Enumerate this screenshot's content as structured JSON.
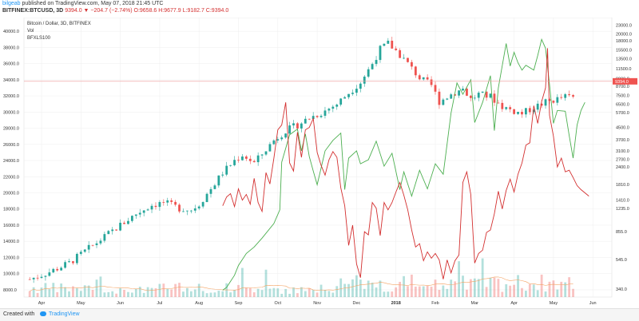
{
  "header": {
    "author": "bilgeab",
    "published_text": "published on TradingView.com, May 07, 2018 21:45 UTC",
    "symbol_line": "BITFINEX:BTCUSD, 3D",
    "values_line": "9394.0 ▼ −204.7 (−2.74%) O:9658.6 H:9677.9 L:9182.7 C:9394.0"
  },
  "footer": {
    "created_with": "Created with",
    "brand": "TradingView"
  },
  "colors": {
    "up": "#26a69a",
    "down": "#ef5350",
    "green_line": "#4caf50",
    "red_line": "#d32f2f",
    "vol_ma": "#f4a261",
    "price_line": "#ef9a9a",
    "price_tag": "#ef5350"
  },
  "chart_data": {
    "type": "line",
    "legend": [
      "Bitcoin / Dollar, 3D, BITFINEX",
      "Vol",
      "BFXLS100"
    ],
    "left_axis": {
      "ticks": [
        8000,
        10000,
        12000,
        14000,
        16000,
        18000,
        20000,
        22000,
        24000,
        26000,
        28000,
        30000,
        32000,
        34000,
        36000,
        38000,
        40000
      ],
      "labels": [
        "8000.0",
        "10000.0",
        "12000.0",
        "14000.0",
        "16000.0",
        "18000.0",
        "20000.0",
        "22000.0",
        "24000.0",
        "26000.0",
        "28000.0",
        "30000.0",
        "32000.0",
        "34000.0",
        "36000.0",
        "38000.0",
        "40000.0"
      ],
      "range": [
        7100,
        41700
      ]
    },
    "right_axis": {
      "scale": "log",
      "ticks": [
        340,
        545,
        855,
        1235,
        1410,
        1810,
        2400,
        2700,
        3100,
        3700,
        4500,
        5700,
        6500,
        7500,
        8700,
        9800,
        11500,
        13500,
        15500,
        18000,
        20000,
        23000
      ],
      "labels": [
        "340.0",
        "545.0",
        "855.0",
        "1235.0",
        "1410.0",
        "1810.0",
        "2400.0",
        "2700.0",
        "3100.0",
        "3700.0",
        "4500.0",
        "5700.0",
        "6500.0",
        "7500.0",
        "8700.0",
        "9800.0",
        "11500.0",
        "13500.0",
        "15500.0",
        "18000.0",
        "20000.0",
        "23000.0"
      ],
      "range": [
        300,
        26000
      ]
    },
    "x_axis": {
      "labels": [
        "Apr",
        "May",
        "Jun",
        "Jul",
        "Aug",
        "Sep",
        "Oct",
        "Nov",
        "Dec",
        "2018",
        "Feb",
        "Mar",
        "Apr",
        "May",
        "Jun"
      ],
      "positions": [
        0,
        1,
        2,
        3,
        4,
        5,
        6,
        7,
        8,
        9,
        10,
        11,
        12,
        13,
        14
      ],
      "bold": [
        "2018"
      ]
    },
    "last_price": {
      "value": 9394.0,
      "label": "9394.0"
    },
    "price_anchors": [
      [
        -0.3,
        9300
      ],
      [
        0.2,
        10200
      ],
      [
        0.7,
        11300
      ],
      [
        1.0,
        12400
      ],
      [
        1.5,
        14200
      ],
      [
        2.0,
        16000
      ],
      [
        2.4,
        17400
      ],
      [
        2.8,
        18500
      ],
      [
        3.1,
        18800
      ],
      [
        3.5,
        18100
      ],
      [
        3.8,
        17900
      ],
      [
        4.0,
        18600
      ],
      [
        4.3,
        20500
      ],
      [
        4.6,
        22500
      ],
      [
        4.9,
        24000
      ],
      [
        5.1,
        24700
      ],
      [
        5.4,
        23700
      ],
      [
        5.6,
        24800
      ],
      [
        5.9,
        26500
      ],
      [
        6.2,
        27700
      ],
      [
        6.5,
        28400
      ],
      [
        6.8,
        29300
      ],
      [
        7.1,
        29900
      ],
      [
        7.5,
        31000
      ],
      [
        7.8,
        32400
      ],
      [
        8.1,
        33700
      ],
      [
        8.4,
        36000
      ],
      [
        8.6,
        37800
      ],
      [
        8.8,
        38500
      ],
      [
        9.0,
        37600
      ],
      [
        9.3,
        36000
      ],
      [
        9.6,
        34200
      ],
      [
        9.9,
        33300
      ],
      [
        10.1,
        31300
      ],
      [
        10.4,
        32200
      ],
      [
        10.7,
        32900
      ],
      [
        10.9,
        31600
      ],
      [
        11.1,
        32200
      ],
      [
        11.4,
        31900
      ],
      [
        11.7,
        30700
      ],
      [
        12.0,
        30100
      ],
      [
        12.2,
        29800
      ],
      [
        12.5,
        30600
      ],
      [
        12.8,
        31200
      ],
      [
        13.1,
        31600
      ],
      [
        13.3,
        31900
      ],
      [
        13.5,
        31800
      ]
    ],
    "green_line": [
      [
        4.6,
        7950
      ],
      [
        4.7,
        8300
      ],
      [
        4.9,
        9800
      ],
      [
        5.0,
        11000
      ],
      [
        5.2,
        12500
      ],
      [
        5.4,
        13300
      ],
      [
        5.6,
        14400
      ],
      [
        5.9,
        16200
      ],
      [
        6.05,
        17900
      ],
      [
        6.1,
        23800
      ],
      [
        6.3,
        27200
      ],
      [
        6.5,
        27900
      ],
      [
        6.6,
        25200
      ],
      [
        6.7,
        27300
      ],
      [
        6.8,
        24500
      ],
      [
        6.9,
        22700
      ],
      [
        7.0,
        21000
      ],
      [
        7.2,
        25200
      ],
      [
        7.4,
        26500
      ],
      [
        7.6,
        27400
      ],
      [
        7.7,
        20400
      ],
      [
        7.8,
        24300
      ],
      [
        8.0,
        25200
      ],
      [
        8.1,
        23600
      ],
      [
        8.3,
        24100
      ],
      [
        8.5,
        26400
      ],
      [
        8.7,
        23300
      ],
      [
        8.9,
        24900
      ],
      [
        9.1,
        20400
      ],
      [
        9.2,
        22600
      ],
      [
        9.4,
        19600
      ],
      [
        9.6,
        22800
      ],
      [
        9.8,
        20500
      ],
      [
        10.0,
        23600
      ],
      [
        10.2,
        22300
      ],
      [
        10.4,
        29900
      ],
      [
        10.55,
        33600
      ],
      [
        10.7,
        32200
      ],
      [
        10.9,
        34000
      ],
      [
        11.0,
        28700
      ],
      [
        11.2,
        31200
      ],
      [
        11.4,
        34500
      ],
      [
        11.5,
        27700
      ],
      [
        11.6,
        33000
      ],
      [
        11.8,
        38500
      ],
      [
        11.9,
        35700
      ],
      [
        12.0,
        37400
      ],
      [
        12.1,
        36100
      ],
      [
        12.2,
        35200
      ],
      [
        12.3,
        35800
      ],
      [
        12.5,
        35200
      ],
      [
        12.6,
        37000
      ],
      [
        12.7,
        39000
      ],
      [
        12.8,
        37900
      ],
      [
        12.9,
        33400
      ],
      [
        13.0,
        28600
      ],
      [
        13.1,
        30200
      ],
      [
        13.3,
        30100
      ],
      [
        13.4,
        27100
      ],
      [
        13.5,
        24300
      ],
      [
        13.6,
        28400
      ],
      [
        13.7,
        30200
      ],
      [
        13.8,
        31200
      ]
    ],
    "red_line": [
      [
        4.6,
        18400
      ],
      [
        4.7,
        19500
      ],
      [
        4.8,
        19900
      ],
      [
        4.9,
        18300
      ],
      [
        5.0,
        20500
      ],
      [
        5.1,
        19100
      ],
      [
        5.2,
        19800
      ],
      [
        5.3,
        18600
      ],
      [
        5.4,
        21800
      ],
      [
        5.5,
        18800
      ],
      [
        5.6,
        17700
      ],
      [
        5.7,
        22500
      ],
      [
        5.8,
        21100
      ],
      [
        5.9,
        24300
      ],
      [
        6.0,
        27800
      ],
      [
        6.1,
        28400
      ],
      [
        6.2,
        31200
      ],
      [
        6.3,
        23700
      ],
      [
        6.4,
        22700
      ],
      [
        6.5,
        27500
      ],
      [
        6.6,
        24400
      ],
      [
        6.7,
        27800
      ],
      [
        6.8,
        28100
      ],
      [
        6.9,
        29200
      ],
      [
        7.0,
        25000
      ],
      [
        7.1,
        23400
      ],
      [
        7.2,
        22200
      ],
      [
        7.3,
        24100
      ],
      [
        7.4,
        25100
      ],
      [
        7.5,
        24400
      ],
      [
        7.6,
        20600
      ],
      [
        7.7,
        18400
      ],
      [
        7.8,
        13500
      ],
      [
        7.9,
        16000
      ],
      [
        8.0,
        11200
      ],
      [
        8.1,
        9500
      ],
      [
        8.2,
        15200
      ],
      [
        8.3,
        14800
      ],
      [
        8.4,
        18800
      ],
      [
        8.5,
        18100
      ],
      [
        8.6,
        14700
      ],
      [
        8.7,
        18800
      ],
      [
        8.8,
        17900
      ],
      [
        8.9,
        18800
      ],
      [
        9.0,
        20100
      ],
      [
        9.1,
        21300
      ],
      [
        9.2,
        19700
      ],
      [
        9.3,
        17900
      ],
      [
        9.4,
        15400
      ],
      [
        9.5,
        13300
      ],
      [
        9.6,
        13700
      ],
      [
        9.7,
        11600
      ],
      [
        9.8,
        12700
      ],
      [
        9.9,
        11900
      ],
      [
        10.0,
        12500
      ],
      [
        10.1,
        11700
      ],
      [
        10.2,
        9300
      ],
      [
        10.3,
        11700
      ],
      [
        10.4,
        10100
      ],
      [
        10.5,
        11600
      ],
      [
        10.6,
        12300
      ],
      [
        10.7,
        21300
      ],
      [
        10.8,
        22600
      ],
      [
        10.9,
        19800
      ],
      [
        11.0,
        11300
      ],
      [
        11.1,
        12500
      ],
      [
        11.2,
        12900
      ],
      [
        11.3,
        15100
      ],
      [
        11.4,
        15400
      ],
      [
        11.5,
        17400
      ],
      [
        11.6,
        20200
      ],
      [
        11.7,
        18000
      ],
      [
        11.8,
        20300
      ],
      [
        11.9,
        21700
      ],
      [
        12.0,
        20100
      ],
      [
        12.1,
        22300
      ],
      [
        12.2,
        23700
      ],
      [
        12.3,
        25900
      ],
      [
        12.4,
        26200
      ],
      [
        12.5,
        30800
      ],
      [
        12.6,
        28600
      ],
      [
        12.7,
        31300
      ],
      [
        12.8,
        33000
      ],
      [
        12.85,
        37900
      ],
      [
        12.9,
        29600
      ],
      [
        13.0,
        27000
      ],
      [
        13.1,
        23200
      ],
      [
        13.2,
        24300
      ],
      [
        13.3,
        22600
      ],
      [
        13.4,
        22800
      ],
      [
        13.5,
        21900
      ],
      [
        13.6,
        20900
      ],
      [
        13.7,
        20400
      ],
      [
        13.8,
        20000
      ],
      [
        13.9,
        19600
      ]
    ]
  }
}
